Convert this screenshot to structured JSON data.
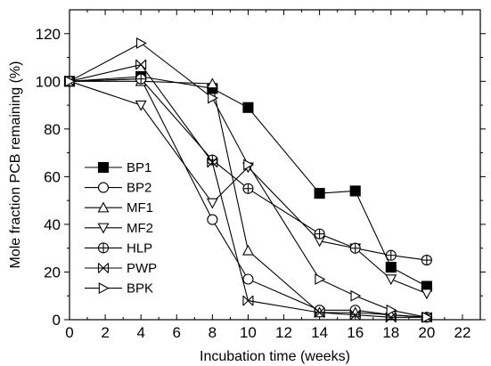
{
  "chart_data": {
    "type": "line",
    "title": "",
    "xlabel": "Incubation time (weeks)",
    "ylabel": "Mole fraction PCB remaining (%)",
    "xlim": [
      0,
      23
    ],
    "ylim": [
      0,
      130
    ],
    "xticks": [
      0,
      2,
      4,
      6,
      8,
      10,
      12,
      14,
      16,
      18,
      20,
      22
    ],
    "yticks": [
      0,
      20,
      40,
      60,
      80,
      100,
      120
    ],
    "grid": false,
    "legend_position": "left",
    "series": [
      {
        "name": "BP1",
        "marker": "square-filled",
        "x": [
          0,
          4,
          8,
          10,
          14,
          16,
          18,
          20
        ],
        "y": [
          100,
          102,
          97,
          89,
          53,
          54,
          22,
          14
        ]
      },
      {
        "name": "BP2",
        "marker": "circle",
        "x": [
          0,
          4,
          8,
          10,
          14,
          16,
          18,
          20
        ],
        "y": [
          100,
          101,
          42,
          17,
          4,
          4,
          2,
          1
        ]
      },
      {
        "name": "MF1",
        "marker": "triangle-up",
        "x": [
          0,
          4,
          8,
          10,
          14,
          16,
          18,
          20
        ],
        "y": [
          100,
          100,
          99,
          29,
          3,
          3,
          2,
          1
        ]
      },
      {
        "name": "MF2",
        "marker": "triangle-down",
        "x": [
          0,
          4,
          8,
          10,
          14,
          16,
          18,
          20
        ],
        "y": [
          100,
          90,
          49,
          64,
          33,
          30,
          17,
          11
        ]
      },
      {
        "name": "HLP",
        "marker": "circle-plus",
        "x": [
          0,
          4,
          8,
          10,
          14,
          16,
          18,
          20
        ],
        "y": [
          100,
          101,
          67,
          55,
          36,
          30,
          27,
          25
        ]
      },
      {
        "name": "PWP",
        "marker": "x-box",
        "x": [
          0,
          4,
          8,
          10,
          14,
          16,
          18,
          20
        ],
        "y": [
          100,
          107,
          66,
          8,
          3,
          2,
          1,
          1
        ]
      },
      {
        "name": "BPK",
        "marker": "triangle-right",
        "x": [
          0,
          4,
          8,
          10,
          14,
          16,
          18,
          20
        ],
        "y": [
          100,
          116,
          93,
          65,
          17,
          10,
          4,
          1
        ]
      }
    ]
  }
}
